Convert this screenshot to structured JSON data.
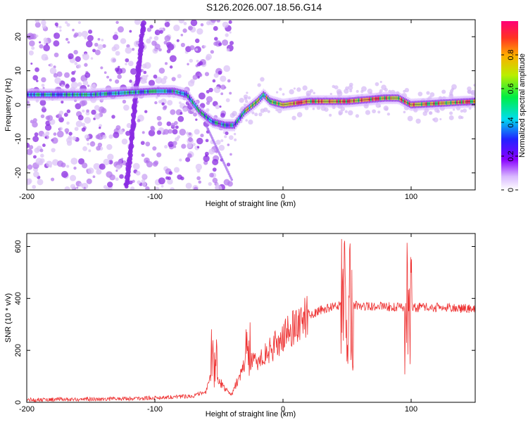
{
  "page": {
    "title": "S126.2026.007.18.56.G14"
  },
  "chart_data": [
    {
      "type": "heatmap",
      "xlabel": "Height of straight line (km)",
      "ylabel": "Frequency (Hz)",
      "xlim": [
        -200,
        150
      ],
      "ylim": [
        -25,
        25
      ],
      "x_ticks": [
        -200,
        -100,
        0,
        100
      ],
      "y_ticks": [
        -20,
        -10,
        0,
        10,
        20
      ],
      "colorbar": {
        "label": "Normalized spectral amplitude",
        "range": [
          0,
          1
        ],
        "ticks": [
          0.0,
          0.2,
          0.4,
          0.6,
          0.8
        ]
      },
      "ridge": {
        "x": [
          -200,
          -150,
          -100,
          -85,
          -75,
          -65,
          -55,
          -45,
          -38,
          -30,
          -20,
          -15,
          -10,
          0,
          20,
          50,
          80,
          90,
          95,
          100,
          150
        ],
        "y": [
          3,
          3,
          4,
          4,
          3,
          -2,
          -5,
          -6,
          -6,
          -2,
          1,
          3,
          1,
          0,
          1,
          1,
          2,
          2,
          1,
          0,
          1
        ]
      }
    },
    {
      "type": "line",
      "xlabel": "Height of straight line (km)",
      "ylabel": "SNR (10 * v/v)",
      "xlim": [
        -200,
        150
      ],
      "ylim": [
        0,
        650
      ],
      "x_ticks": [
        -200,
        -100,
        0,
        100
      ],
      "y_ticks": [
        0,
        200,
        400,
        600
      ],
      "color": "#ee3333",
      "series": [
        {
          "name": "SNR",
          "x": [
            -200,
            -150,
            -110,
            -90,
            -70,
            -60,
            -55,
            -50,
            -40,
            -35,
            -30,
            -20,
            -10,
            0,
            10,
            20,
            30,
            40,
            50,
            55,
            60,
            70,
            80,
            90,
            100,
            110,
            120,
            150
          ],
          "y": [
            10,
            12,
            15,
            20,
            25,
            40,
            120,
            80,
            30,
            90,
            140,
            160,
            200,
            250,
            300,
            335,
            355,
            370,
            380,
            375,
            370,
            370,
            370,
            365,
            365,
            365,
            365,
            360
          ]
        }
      ]
    }
  ]
}
